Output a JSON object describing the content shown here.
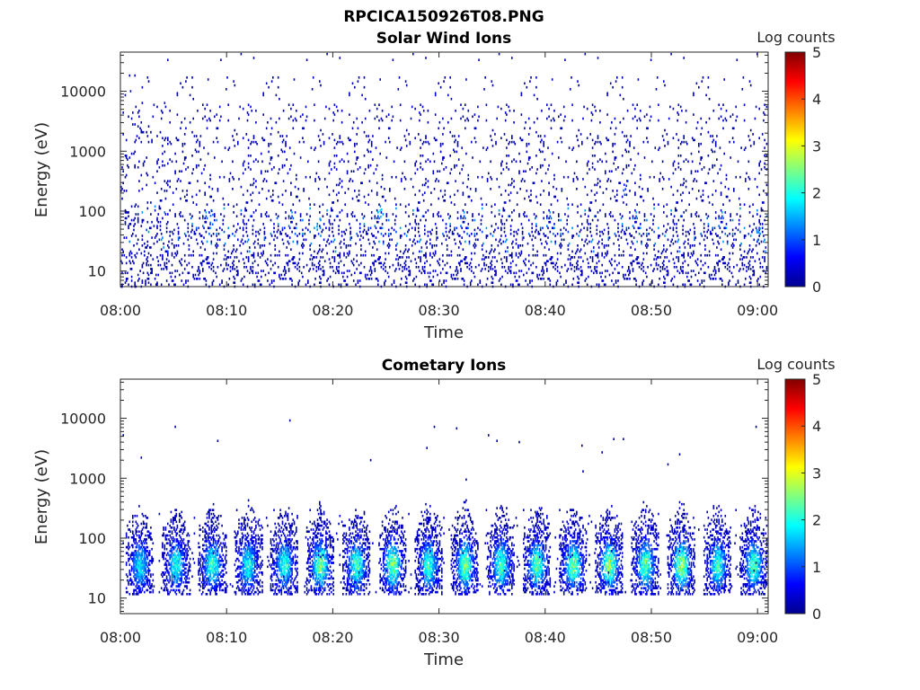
{
  "figure_title": "RPCICA150926T08.PNG",
  "colormap": [
    "#00008f",
    "#0000ff",
    "#0080ff",
    "#00ffff",
    "#80ff80",
    "#ffff00",
    "#ff8000",
    "#ff0000",
    "#800000"
  ],
  "chart_data": [
    {
      "type": "heatmap",
      "title": "Solar Wind Ions",
      "xlabel": "Time",
      "ylabel": "Energy (eV)",
      "x_ticks": [
        "08:00",
        "08:10",
        "08:20",
        "08:30",
        "08:40",
        "08:50",
        "09:00"
      ],
      "x_range_minutes": [
        0,
        61
      ],
      "y_scale": "log",
      "y_range": [
        5.5,
        45000
      ],
      "y_ticks": [
        {
          "value": 10,
          "label": "10"
        },
        {
          "value": 100,
          "label": "100"
        },
        {
          "value": 1000,
          "label": "1000"
        },
        {
          "value": 10000,
          "label": "10000"
        }
      ],
      "colorbar": {
        "label": "Log counts",
        "range": [
          0,
          5
        ],
        "ticks": [
          "0",
          "1",
          "2",
          "3",
          "4",
          "5"
        ]
      },
      "pattern": "sparse scattered counts (log ~0-0.5) across all energies, denser below 100 eV, occasional ~1-1.5 near 30-80 eV",
      "bright_spots": [
        {
          "t": 24.5,
          "e": 100,
          "log": 1.6
        },
        {
          "t": 18.6,
          "e": 60,
          "log": 1.3
        },
        {
          "t": 47.5,
          "e": 250,
          "log": 1.0
        },
        {
          "t": 60.0,
          "e": 40,
          "log": 1.4
        },
        {
          "t": 8.5,
          "e": 80,
          "log": 1.1
        }
      ]
    },
    {
      "type": "heatmap",
      "title": "Cometary Ions",
      "xlabel": "Time",
      "ylabel": "Energy (eV)",
      "x_ticks": [
        "08:00",
        "08:10",
        "08:20",
        "08:30",
        "08:40",
        "08:50",
        "09:00"
      ],
      "x_range_minutes": [
        0,
        61
      ],
      "y_scale": "log",
      "y_range": [
        5.5,
        45000
      ],
      "y_ticks": [
        {
          "value": 10,
          "label": "10"
        },
        {
          "value": 100,
          "label": "100"
        },
        {
          "value": 1000,
          "label": "1000"
        },
        {
          "value": 10000,
          "label": "10000"
        }
      ],
      "colorbar": {
        "label": "Log counts",
        "range": [
          0,
          5
        ],
        "ticks": [
          "0",
          "1",
          "2",
          "3",
          "4",
          "5"
        ]
      },
      "pattern": "periodic bursts every ~3.4 min between ~12 and ~400 eV, peak log counts ~2.5-2.8 near 30-60 eV; rare isolated counts above 1000 eV",
      "bursts_minutes": [
        1.8,
        5.2,
        8.6,
        12.0,
        15.4,
        18.8,
        22.2,
        25.6,
        29.0,
        32.4,
        35.8,
        39.2,
        42.6,
        46.0,
        49.4,
        52.8,
        56.2,
        59.6
      ],
      "burst_peak_log": [
        1.8,
        2.0,
        2.2,
        2.0,
        2.1,
        2.5,
        2.3,
        2.6,
        2.2,
        2.5,
        2.3,
        2.4,
        2.6,
        2.7,
        2.4,
        2.8,
        2.2,
        2.3
      ],
      "isolated_high_energy": [
        {
          "t": 0.2,
          "e": 5200
        },
        {
          "t": 1.9,
          "e": 2200
        },
        {
          "t": 5.1,
          "e": 7200
        },
        {
          "t": 9.1,
          "e": 4200
        },
        {
          "t": 15.9,
          "e": 9200
        },
        {
          "t": 23.5,
          "e": 2000
        },
        {
          "t": 28.8,
          "e": 3200
        },
        {
          "t": 29.5,
          "e": 7200
        },
        {
          "t": 31.6,
          "e": 6800
        },
        {
          "t": 32.5,
          "e": 950
        },
        {
          "t": 34.6,
          "e": 5200
        },
        {
          "t": 35.4,
          "e": 4200
        },
        {
          "t": 37.5,
          "e": 4000
        },
        {
          "t": 43.4,
          "e": 3500
        },
        {
          "t": 43.5,
          "e": 1300
        },
        {
          "t": 45.3,
          "e": 2700
        },
        {
          "t": 46.4,
          "e": 4500
        },
        {
          "t": 47.3,
          "e": 4500
        },
        {
          "t": 51.5,
          "e": 1700
        },
        {
          "t": 52.6,
          "e": 2500
        },
        {
          "t": 59.8,
          "e": 7200
        }
      ]
    }
  ]
}
